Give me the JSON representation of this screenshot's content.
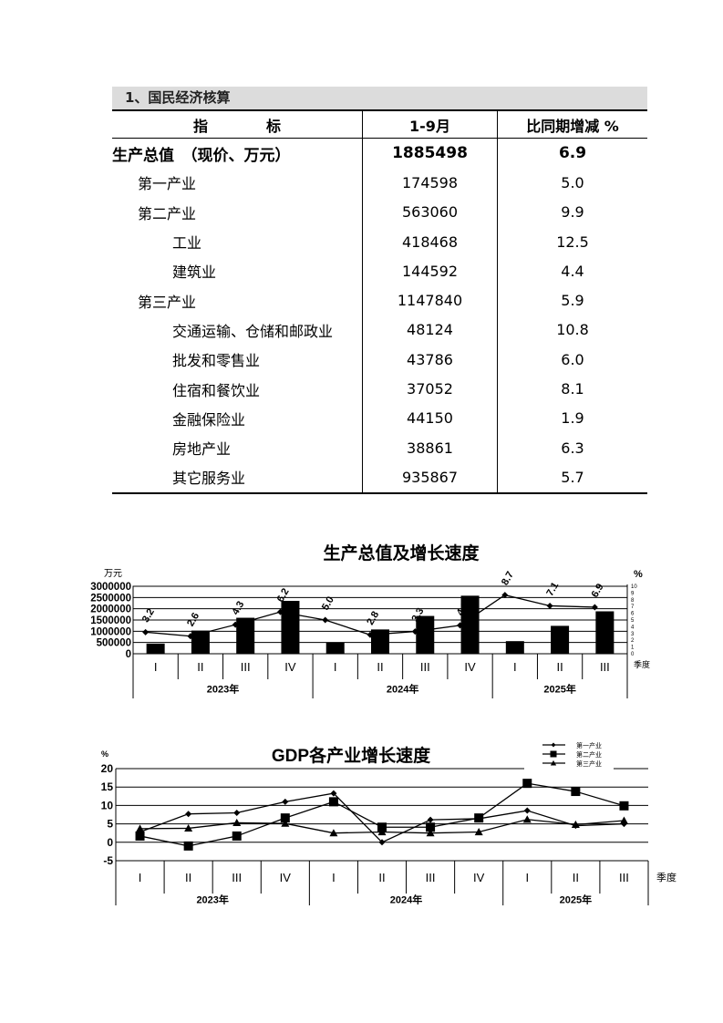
{
  "section_title": "1、国民经济核算",
  "table": {
    "headers": [
      "指　　　　标",
      "1-9月",
      "比同期增减 %"
    ],
    "rows": [
      {
        "name": "生产总值　（现价、万元）",
        "value": "1885498",
        "growth": "6.9",
        "level": 0
      },
      {
        "name": "第一产业",
        "value": "174598",
        "growth": "5.0",
        "level": 1
      },
      {
        "name": "第二产业",
        "value": "563060",
        "growth": "9.9",
        "level": 1
      },
      {
        "name": "工业",
        "value": "418468",
        "growth": "12.5",
        "level": 2
      },
      {
        "name": "建筑业",
        "value": "144592",
        "growth": "4.4",
        "level": 2
      },
      {
        "name": "第三产业",
        "value": "1147840",
        "growth": "5.9",
        "level": 1
      },
      {
        "name": "交通运输、仓储和邮政业",
        "value": "48124",
        "growth": "10.8",
        "level": 2
      },
      {
        "name": "批发和零售业",
        "value": "43786",
        "growth": "6.0",
        "level": 2
      },
      {
        "name": "住宿和餐饮业",
        "value": "37052",
        "growth": "8.1",
        "level": 2
      },
      {
        "name": "金融保险业",
        "value": "44150",
        "growth": "1.9",
        "level": 2
      },
      {
        "name": "房地产业",
        "value": "38861",
        "growth": "6.3",
        "level": 2
      },
      {
        "name": "其它服务业",
        "value": "935867",
        "growth": "5.7",
        "level": 2
      }
    ]
  },
  "chart_data": [
    {
      "type": "bar+line",
      "title": "生产总值及增长速度",
      "ylabel": "万元",
      "y2label": "%",
      "xlabel": "季度",
      "quarters": [
        "I",
        "II",
        "III",
        "IV",
        "I",
        "II",
        "III",
        "IV",
        "I",
        "II",
        "III"
      ],
      "years": [
        "2023年",
        "2024年",
        "2025年"
      ],
      "ylim": [
        0,
        3000000
      ],
      "yticks": [
        0,
        500000,
        1000000,
        1500000,
        2000000,
        2500000,
        3000000
      ],
      "y2lim": [
        0,
        10
      ],
      "y2ticks": [
        0,
        1,
        2,
        3,
        4,
        5,
        6,
        7,
        8,
        9,
        10
      ],
      "bars": [
        450000,
        1030000,
        1600000,
        2350000,
        500000,
        1080000,
        1680000,
        2580000,
        560000,
        1240000,
        1885498
      ],
      "line": [
        3.2,
        2.6,
        4.3,
        6.2,
        5.0,
        2.8,
        3.3,
        4.2,
        8.7,
        7.1,
        6.9
      ],
      "line_labels": [
        "3.2",
        "2.6",
        "4.3",
        "6.2",
        "5.0",
        "2.8",
        "3.3",
        "4.2",
        "8.7",
        "7.1",
        "6.9"
      ],
      "grid": true
    },
    {
      "type": "line",
      "title": "GDP各产业增长速度",
      "ylabel": "%",
      "xlabel": "季度",
      "quarters": [
        "I",
        "II",
        "III",
        "IV",
        "I",
        "II",
        "III",
        "IV",
        "I",
        "II",
        "III"
      ],
      "years": [
        "2023年",
        "2024年",
        "2025年"
      ],
      "ylim": [
        -5,
        20
      ],
      "yticks": [
        -5,
        0,
        5,
        10,
        15,
        20
      ],
      "grid": true,
      "legend": "top-right",
      "series": [
        {
          "name": "第一产业",
          "marker": "diamond",
          "values": [
            2.8,
            7.7,
            8.0,
            11.0,
            13.3,
            0.0,
            6.1,
            6.4,
            8.6,
            4.5,
            5.0
          ]
        },
        {
          "name": "第二产业",
          "marker": "square",
          "values": [
            1.7,
            -1.0,
            1.7,
            6.6,
            11.0,
            4.1,
            4.1,
            6.6,
            16.0,
            13.8,
            9.9
          ]
        },
        {
          "name": "第三产业",
          "marker": "triangle",
          "values": [
            3.7,
            3.8,
            5.3,
            5.1,
            2.5,
            2.8,
            2.5,
            2.8,
            6.2,
            4.8,
            5.9
          ]
        }
      ]
    }
  ]
}
